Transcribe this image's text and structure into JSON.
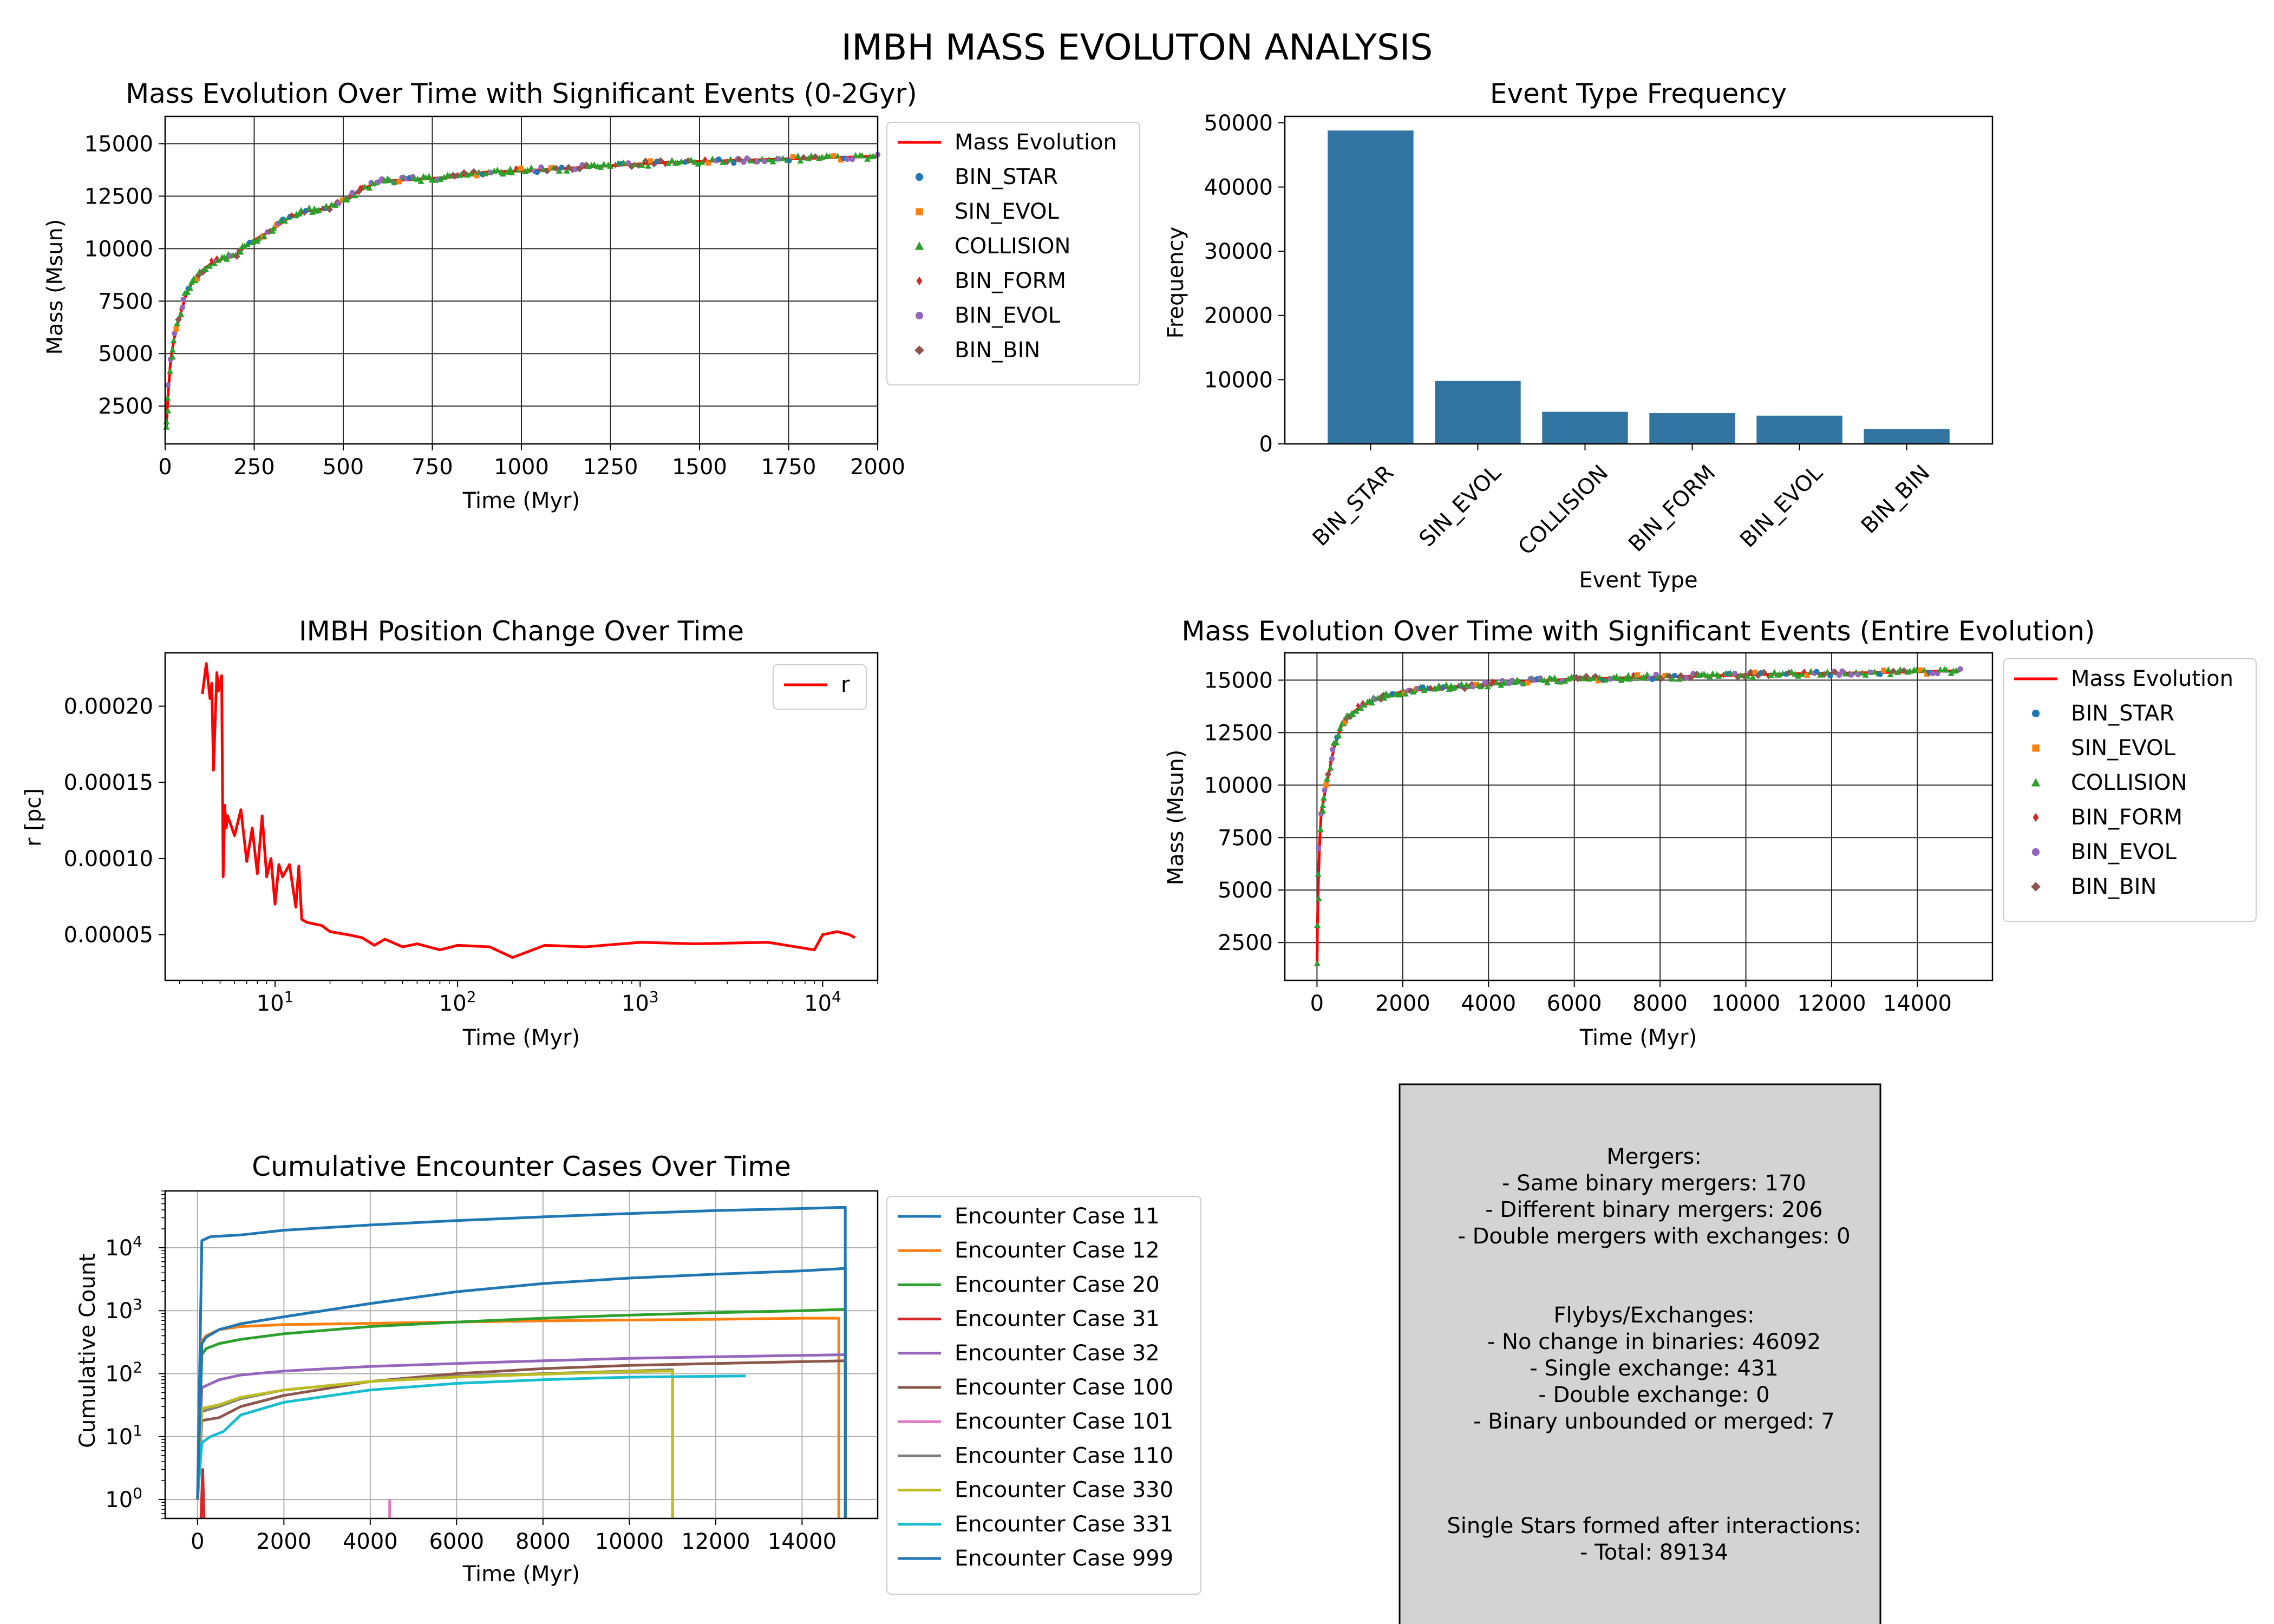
{
  "figure": {
    "suptitle": "IMBH MASS EVOLUTON ANALYSIS",
    "event_colors": {
      "BIN_STAR": "#1f77b4",
      "SIN_EVOL": "#ff7f0e",
      "COLLISION": "#2ca02c",
      "BIN_FORM": "#d62728",
      "BIN_EVOL": "#9467bd",
      "BIN_BIN": "#8c564b"
    }
  },
  "chart_data": [
    {
      "id": "mass_0_2gyr",
      "type": "line",
      "title": "Mass Evolution Over Time with Significant Events (0-2Gyr)",
      "xlabel": "Time (Myr)",
      "ylabel": "Mass (Msun)",
      "xlim": [
        0,
        2000
      ],
      "ylim": [
        700,
        16300
      ],
      "xticks": [
        0,
        250,
        500,
        750,
        1000,
        1250,
        1500,
        1750,
        2000
      ],
      "yticks": [
        2500,
        5000,
        7500,
        10000,
        12500,
        15000
      ],
      "grid": true,
      "legend_position": "outside-right",
      "legend": [
        "Mass Evolution",
        "BIN_STAR",
        "SIN_EVOL",
        "COLLISION",
        "BIN_FORM",
        "BIN_EVOL",
        "BIN_BIN"
      ],
      "series": [
        {
          "name": "Mass Evolution",
          "color": "#ff0000",
          "x": [
            3,
            8,
            15,
            25,
            40,
            60,
            80,
            100,
            130,
            160,
            200,
            230,
            250,
            300,
            350,
            400,
            450,
            500,
            550,
            600,
            650,
            700,
            800,
            900,
            1000,
            1100,
            1200,
            1300,
            1400,
            1500,
            1600,
            1700,
            1800,
            1900,
            2000
          ],
          "y": [
            1400,
            3000,
            4600,
            5700,
            6700,
            7900,
            8500,
            8900,
            9300,
            9500,
            9700,
            10200,
            10400,
            10900,
            11500,
            11800,
            11900,
            12300,
            12800,
            13200,
            13250,
            13300,
            13400,
            13650,
            13700,
            13800,
            13900,
            14000,
            14100,
            14150,
            14200,
            14250,
            14300,
            14350,
            14400
          ]
        }
      ]
    },
    {
      "id": "event_frequency",
      "type": "bar",
      "title": "Event Type Frequency",
      "xlabel": "Event Type",
      "ylabel": "Frequency",
      "ylim": [
        0,
        51000
      ],
      "yticks": [
        0,
        10000,
        20000,
        30000,
        40000,
        50000
      ],
      "categories": [
        "BIN_STAR",
        "SIN_EVOL",
        "COLLISION",
        "BIN_FORM",
        "BIN_EVOL",
        "BIN_BIN"
      ],
      "values": [
        48800,
        9800,
        5000,
        4800,
        4400,
        2300
      ],
      "bar_color": "#3274a1"
    },
    {
      "id": "imbh_position",
      "type": "line",
      "title": "IMBH Position Change Over Time",
      "xlabel": "Time (Myr)",
      "ylabel": "r [pc]",
      "xscale": "log",
      "xlim": [
        2.5,
        20000
      ],
      "ylim": [
        2e-05,
        0.000235
      ],
      "xticks": [
        10,
        100,
        1000,
        10000
      ],
      "xtick_labels": [
        "10",
        "10",
        "10",
        "10"
      ],
      "xtick_exponents": [
        "1",
        "2",
        "3",
        "4"
      ],
      "yticks": [
        5e-05,
        0.0001,
        0.00015,
        0.0002
      ],
      "ytick_labels": [
        "0.00005",
        "0.00010",
        "0.00015",
        "0.00020"
      ],
      "grid": false,
      "legend_position": "upper-right",
      "legend": [
        "r"
      ],
      "series": [
        {
          "name": "r",
          "color": "#ff0000",
          "x": [
            4,
            4.2,
            4.4,
            4.5,
            4.6,
            4.8,
            4.9,
            5.0,
            5.1,
            5.2,
            5.3,
            5.4,
            5.5,
            6,
            6.5,
            7,
            7.5,
            8,
            8.5,
            9,
            9.5,
            10,
            10.5,
            11,
            12,
            13,
            13.5,
            14,
            15,
            18,
            20,
            25,
            30,
            35,
            40,
            50,
            60,
            80,
            100,
            150,
            200,
            300,
            500,
            1000,
            2000,
            5000,
            9000,
            10000,
            12000,
            14000,
            15000
          ],
          "y": [
            0.000208,
            0.000228,
            0.000205,
            0.000215,
            0.000158,
            0.000222,
            0.00021,
            0.000215,
            0.00022,
            8.8e-05,
            0.000135,
            0.00012,
            0.000128,
            0.000115,
            0.000132,
            9.8e-05,
            0.00012,
            9e-05,
            0.000128,
            8.8e-05,
            0.0001,
            7e-05,
            9.6e-05,
            8.8e-05,
            9.6e-05,
            6.8e-05,
            9.5e-05,
            6e-05,
            5.8e-05,
            5.6e-05,
            5.2e-05,
            5e-05,
            4.8e-05,
            4.3e-05,
            4.7e-05,
            4.2e-05,
            4.4e-05,
            4e-05,
            4.3e-05,
            4.2e-05,
            3.5e-05,
            4.3e-05,
            4.2e-05,
            4.5e-05,
            4.4e-05,
            4.5e-05,
            4e-05,
            5e-05,
            5.2e-05,
            5e-05,
            4.8e-05
          ]
        }
      ]
    },
    {
      "id": "mass_entire",
      "type": "line",
      "title": "Mass Evolution Over Time with Significant Events (Entire Evolution)",
      "xlabel": "Time (Myr)",
      "ylabel": "Mass (Msun)",
      "xlim": [
        -750,
        15750
      ],
      "ylim": [
        700,
        16300
      ],
      "xticks": [
        0,
        2000,
        4000,
        6000,
        8000,
        10000,
        12000,
        14000
      ],
      "yticks": [
        2500,
        5000,
        7500,
        10000,
        12500,
        15000
      ],
      "grid": true,
      "legend_position": "outside-right",
      "legend": [
        "Mass Evolution",
        "BIN_STAR",
        "SIN_EVOL",
        "COLLISION",
        "BIN_FORM",
        "BIN_EVOL",
        "BIN_BIN"
      ],
      "series": [
        {
          "name": "Mass Evolution",
          "color": "#ff0000",
          "x": [
            3,
            10,
            30,
            60,
            100,
            200,
            300,
            400,
            500,
            600,
            700,
            800,
            1000,
            1500,
            2000,
            2500,
            3000,
            4000,
            5000,
            6000,
            7000,
            8000,
            9000,
            10000,
            11000,
            12000,
            13000,
            14000,
            15000
          ],
          "y": [
            1400,
            3200,
            5200,
            7200,
            8700,
            9800,
            10800,
            11800,
            12400,
            13000,
            13250,
            13400,
            13700,
            14200,
            14450,
            14550,
            14650,
            14800,
            14950,
            15050,
            15100,
            15150,
            15200,
            15250,
            15300,
            15330,
            15360,
            15400,
            15450
          ]
        }
      ]
    },
    {
      "id": "encounters",
      "type": "line",
      "title": "Cumulative Encounter Cases Over Time",
      "xlabel": "Time (Myr)",
      "ylabel": "Cumulative Count",
      "yscale": "log",
      "xlim": [
        -750,
        15750
      ],
      "ylim": [
        0.5,
        80000
      ],
      "xticks": [
        0,
        2000,
        4000,
        6000,
        8000,
        10000,
        12000,
        14000
      ],
      "yticks": [
        1,
        10,
        100,
        1000,
        10000
      ],
      "ytick_labels": [
        "10",
        "10",
        "10",
        "10",
        "10"
      ],
      "ytick_exponents": [
        "0",
        "1",
        "2",
        "3",
        "4"
      ],
      "grid": true,
      "legend_position": "outside-right",
      "series": [
        {
          "name": "Encounter Case 11",
          "color": "#1f77b4",
          "x": [
            0,
            100,
            300,
            1000,
            2000,
            4000,
            6000,
            8000,
            10000,
            12000,
            14000,
            15000
          ],
          "y": [
            1,
            13000,
            15000,
            16000,
            19000,
            23000,
            27000,
            31000,
            35000,
            39000,
            42000,
            44000
          ]
        },
        {
          "name": "Encounter Case 12",
          "color": "#ff7f0e",
          "x": [
            0,
            100,
            200,
            500,
            1000,
            2000,
            4000,
            6000,
            8000,
            10000,
            12000,
            14000,
            14850
          ],
          "y": [
            1,
            330,
            400,
            500,
            560,
            600,
            630,
            660,
            690,
            710,
            730,
            760,
            760
          ]
        },
        {
          "name": "Encounter Case 20",
          "color": "#2ca02c",
          "x": [
            0,
            100,
            200,
            500,
            1000,
            2000,
            4000,
            6000,
            8000,
            10000,
            12000,
            14000,
            15000
          ],
          "y": [
            1,
            200,
            250,
            300,
            350,
            430,
            560,
            660,
            760,
            850,
            930,
            1000,
            1050
          ]
        },
        {
          "name": "Encounter Case 31",
          "color": "#d62728",
          "x": [
            80,
            120,
            150
          ],
          "y": [
            0.5,
            3,
            0.5
          ]
        },
        {
          "name": "Encounter Case 32",
          "color": "#9467bd",
          "x": [
            0,
            100,
            500,
            1000,
            2000,
            4000,
            6000,
            8000,
            10000,
            12000,
            14000,
            15000
          ],
          "y": [
            1,
            60,
            80,
            95,
            110,
            130,
            145,
            160,
            175,
            185,
            195,
            200
          ]
        },
        {
          "name": "Encounter Case 100",
          "color": "#8c564b",
          "x": [
            0,
            100,
            500,
            1000,
            2000,
            4000,
            6000,
            8000,
            10000,
            12000,
            14000,
            15000
          ],
          "y": [
            1,
            18,
            20,
            30,
            45,
            75,
            100,
            120,
            135,
            145,
            155,
            160
          ]
        },
        {
          "name": "Encounter Case 101",
          "color": "#e377c2",
          "x": [
            4450,
            4450
          ],
          "y": [
            0.5,
            1
          ]
        },
        {
          "name": "Encounter Case 110",
          "color": "#7f7f7f",
          "x": [
            0,
            100,
            500,
            1000,
            2000,
            4000,
            6000,
            8000,
            10000,
            11000
          ],
          "y": [
            1,
            25,
            30,
            40,
            55,
            75,
            90,
            100,
            110,
            115
          ]
        },
        {
          "name": "Encounter Case 330",
          "color": "#bcbd22",
          "x": [
            0,
            100,
            500,
            1000,
            2000,
            4000,
            6000,
            8000,
            10000,
            11000
          ],
          "y": [
            1,
            28,
            32,
            42,
            55,
            75,
            88,
            98,
            108,
            110
          ]
        },
        {
          "name": "Encounter Case 331",
          "color": "#17becf",
          "x": [
            0,
            100,
            300,
            600,
            1000,
            2000,
            4000,
            6000,
            8000,
            10000,
            12700
          ],
          "y": [
            1,
            8,
            10,
            12,
            22,
            35,
            55,
            70,
            80,
            88,
            92
          ]
        },
        {
          "name": "Encounter Case 999",
          "color": "#1f77b4",
          "x": [
            0,
            100,
            200,
            500,
            1000,
            2000,
            4000,
            6000,
            8000,
            10000,
            12000,
            14000,
            15000
          ],
          "y": [
            1,
            300,
            380,
            500,
            620,
            800,
            1300,
            2000,
            2700,
            3300,
            3800,
            4300,
            4700
          ]
        }
      ]
    }
  ],
  "summary": {
    "mergers_header": "Mergers:",
    "mergers": [
      "- Same binary mergers: 170",
      "- Different binary mergers: 206",
      "- Double mergers with exchanges: 0"
    ],
    "flybys_header": "Flybys/Exchanges:",
    "flybys": [
      "- No change in binaries: 46092",
      "- Single exchange: 431",
      "- Double exchange: 0",
      "- Binary unbounded or merged: 7"
    ],
    "singles_header": "Single Stars formed after interactions:",
    "singles": [
      "- Total: 89134"
    ]
  }
}
